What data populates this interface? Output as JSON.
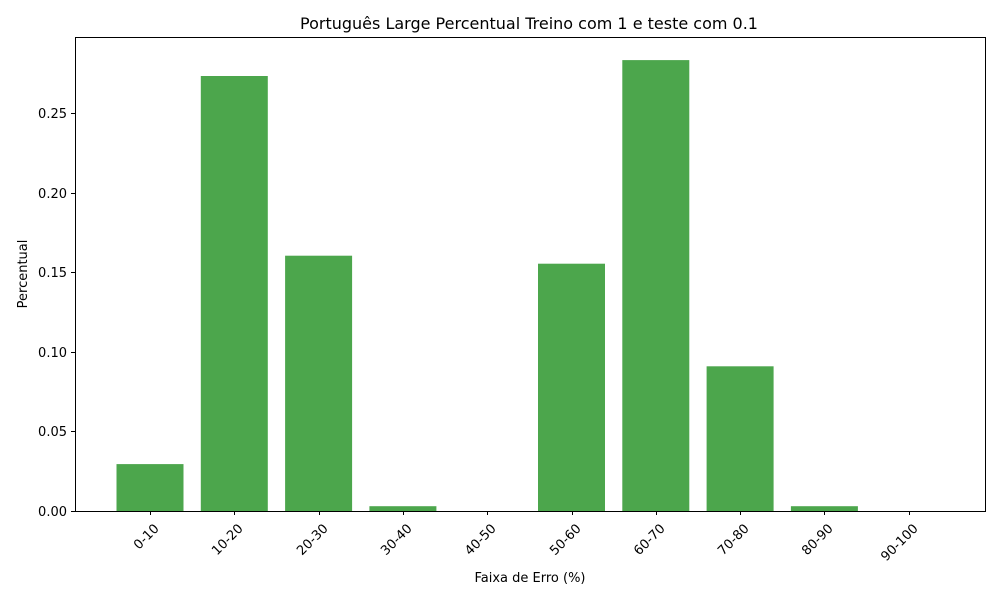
{
  "chart_data": {
    "type": "bar",
    "title": "Português Large Percentual Treino com 1 e teste com 0.1",
    "xlabel": "Faixa de Erro (%)",
    "ylabel": "Percentual",
    "categories": [
      "0-10",
      "10-20",
      "20-30",
      "30-40",
      "40-50",
      "50-60",
      "60-70",
      "70-80",
      "80-90",
      "90-100"
    ],
    "values": [
      0.0295,
      0.2735,
      0.1605,
      0.003,
      0.0,
      0.1555,
      0.2835,
      0.091,
      0.003,
      0.0
    ],
    "ylim": [
      0,
      0.298
    ],
    "yticks": [
      0.0,
      0.05,
      0.1,
      0.15,
      0.2,
      0.25
    ],
    "ytick_labels": [
      "0.00",
      "0.05",
      "0.10",
      "0.15",
      "0.20",
      "0.25"
    ],
    "bar_color": "#4ca64c",
    "grid": false,
    "legend": "none"
  }
}
